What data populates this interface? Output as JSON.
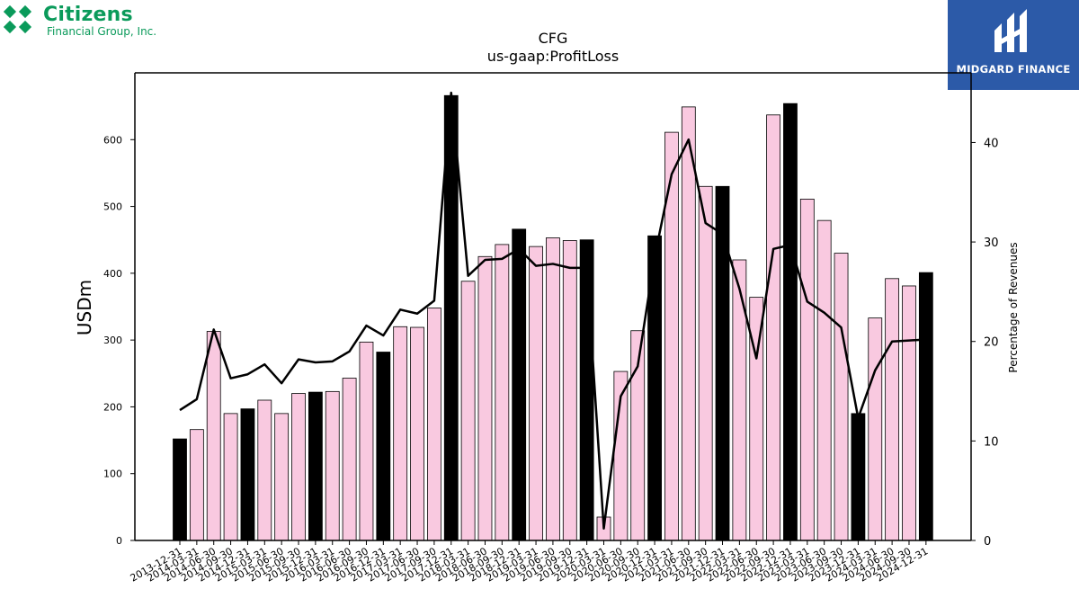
{
  "logos": {
    "left_name": "Citizens",
    "left_sub": "Financial Group, Inc.",
    "right_name": "MIDGARD FINANCE",
    "left_color": "#0a9a5a",
    "right_bg": "#2c5aa8"
  },
  "chart_data": {
    "type": "bar",
    "title": "CFG",
    "subtitle": "us-gaap:ProfitLoss",
    "ylabel": "USDm",
    "y2label": "Percentage of Revenues",
    "ylim": [
      0,
      700
    ],
    "y2lim": [
      0,
      47
    ],
    "yticks": [
      0,
      100,
      200,
      300,
      400,
      500,
      600
    ],
    "y2ticks": [
      0,
      10,
      20,
      30,
      40
    ],
    "categories": [
      "2013-12-31",
      "2014-03-31",
      "2014-06-30",
      "2014-09-30",
      "2014-12-31",
      "2015-03-31",
      "2015-06-30",
      "2015-09-30",
      "2015-12-31",
      "2016-03-31",
      "2016-06-30",
      "2016-09-30",
      "2016-12-31",
      "2017-03-31",
      "2017-06-30",
      "2017-09-30",
      "2017-12-31",
      "2018-03-31",
      "2018-06-30",
      "2018-09-30",
      "2018-12-31",
      "2019-03-31",
      "2019-06-30",
      "2019-09-30",
      "2019-12-31",
      "2020-03-31",
      "2020-06-30",
      "2020-09-30",
      "2020-12-31",
      "2021-03-31",
      "2021-06-30",
      "2021-09-30",
      "2021-12-31",
      "2022-03-31",
      "2022-06-30",
      "2022-09-30",
      "2022-12-31",
      "2023-03-31",
      "2023-06-30",
      "2023-09-30",
      "2023-12-31",
      "2024-03-31",
      "2024-06-30",
      "2024-09-30",
      "2024-12-31"
    ],
    "values": [
      152,
      166,
      313,
      190,
      197,
      210,
      190,
      220,
      222,
      223,
      243,
      297,
      282,
      320,
      319,
      348,
      666,
      388,
      425,
      443,
      466,
      440,
      453,
      449,
      450,
      35,
      253,
      314,
      456,
      611,
      649,
      530,
      530,
      420,
      364,
      637,
      654,
      511,
      479,
      430,
      190,
      333,
      392,
      381,
      401
    ],
    "highlight_year_end": true,
    "colors": {
      "quarter": "#f9c9e0",
      "year_end": "#000000",
      "line": "#000000"
    },
    "line": {
      "name": "Percentage of Revenues",
      "values": [
        13.1,
        14.2,
        21.2,
        16.3,
        16.7,
        17.7,
        15.8,
        18.2,
        17.9,
        18.0,
        19.0,
        21.6,
        20.6,
        23.2,
        22.8,
        24.1,
        45.0,
        26.6,
        28.2,
        28.3,
        29.3,
        27.6,
        27.8,
        27.4,
        27.4,
        1.2,
        14.5,
        17.5,
        28.5,
        36.8,
        40.3,
        31.9,
        30.8,
        25.3,
        18.3,
        29.3,
        29.7,
        24.0,
        22.9,
        21.4,
        12.3,
        17.1,
        20.0,
        20.1,
        20.2
      ]
    }
  }
}
